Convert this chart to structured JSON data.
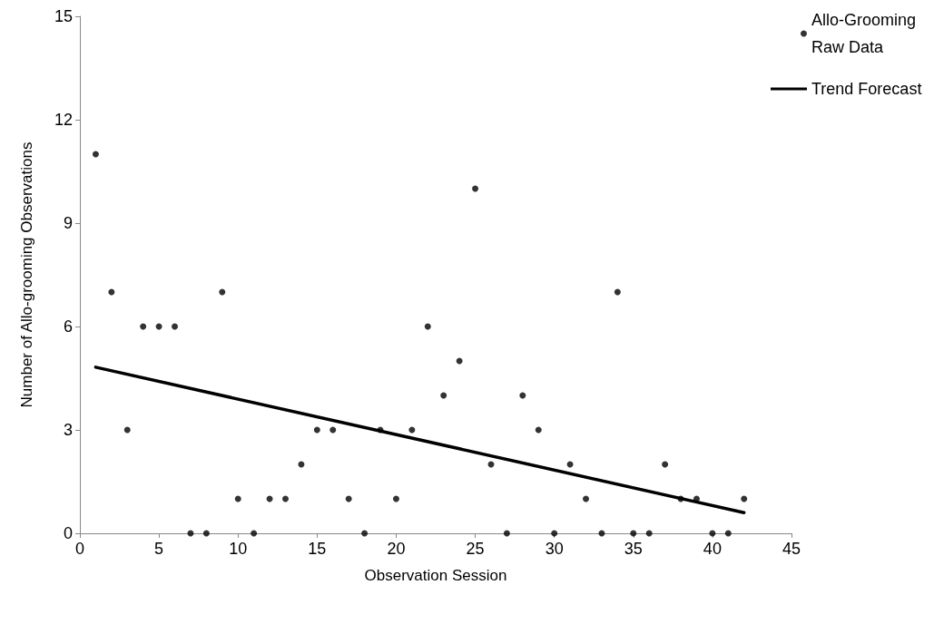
{
  "chart_data": {
    "type": "scatter",
    "xlabel": "Observation Session",
    "ylabel": "Number of Allo-grooming Observations",
    "series": [
      {
        "name": "Allo-Grooming Raw Data",
        "marker": "circle",
        "color": "#000000",
        "x": [
          1,
          2,
          3,
          4,
          5,
          6,
          7,
          8,
          9,
          10,
          11,
          12,
          13,
          14,
          15,
          16,
          17,
          18,
          19,
          20,
          21,
          22,
          23,
          24,
          25,
          26,
          27,
          28,
          29,
          30,
          31,
          32,
          33,
          34,
          35,
          36,
          37,
          38,
          39,
          40,
          41,
          42
        ],
        "values": [
          11,
          7,
          3,
          6,
          6,
          6,
          0,
          0,
          7,
          1,
          0,
          1,
          1,
          2,
          3,
          3,
          1,
          0,
          3,
          1,
          3,
          6,
          4,
          5,
          10,
          2,
          0,
          4,
          3,
          0,
          2,
          1,
          0,
          7,
          0,
          0,
          2,
          1,
          1,
          0,
          0,
          1
        ]
      },
      {
        "name": "Trend Forecast",
        "type": "line",
        "marker": "none",
        "line_style": "solid",
        "color": "#000000",
        "x": [
          1,
          42
        ],
        "values": [
          4.82,
          0.6
        ]
      }
    ],
    "xlim": [
      0,
      45
    ],
    "xticks": [
      0,
      5,
      10,
      15,
      20,
      25,
      30,
      35,
      40,
      45
    ],
    "ylim": [
      0,
      15
    ],
    "yticks": [
      0,
      3,
      6,
      9,
      12,
      15
    ],
    "grid": false,
    "legend": "top right"
  }
}
